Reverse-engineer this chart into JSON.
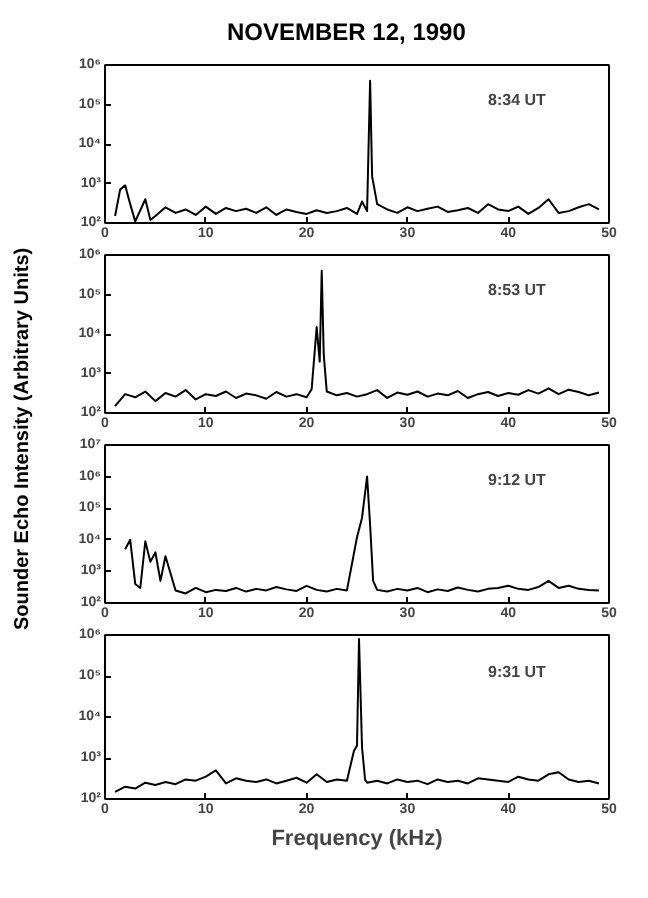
{
  "chart_data": [
    {
      "type": "line",
      "title": "NOVEMBER 12, 1990",
      "ylabel": "Sounder Echo Intensity (Arbitrary Units)",
      "xlim": [
        0,
        50
      ],
      "xticks": [
        0,
        10,
        20,
        30,
        40,
        50
      ],
      "ylim": [
        100,
        1000000
      ],
      "yticks": [
        {
          "value": 100,
          "label": "10²"
        },
        {
          "value": 1000,
          "label": "10³"
        },
        {
          "value": 10000,
          "label": "10⁴"
        },
        {
          "value": 100000,
          "label": "10⁵"
        },
        {
          "value": 1000000,
          "label": "10⁶"
        }
      ],
      "log": "y",
      "annotations": [
        "8:34 UT"
      ],
      "marker": "none",
      "line_style": "solid",
      "series": [
        {
          "color": "#000000",
          "x": [
            1,
            1.5,
            2,
            2.5,
            3,
            4,
            4.5,
            5,
            6,
            7,
            8,
            9,
            10,
            11,
            12,
            13,
            14,
            15,
            16,
            17,
            18,
            19,
            20,
            21,
            22,
            23,
            24,
            25,
            25.5,
            26,
            26.3,
            26.5,
            26.7,
            27,
            28,
            29,
            30,
            31,
            32,
            33,
            34,
            35,
            36,
            37,
            38,
            39,
            40,
            41,
            42,
            43,
            44,
            45,
            46,
            47,
            48,
            49
          ],
          "values": [
            150,
            700,
            900,
            300,
            110,
            400,
            120,
            150,
            250,
            180,
            220,
            160,
            260,
            170,
            240,
            200,
            230,
            180,
            250,
            160,
            220,
            190,
            170,
            210,
            180,
            200,
            240,
            170,
            350,
            200,
            400000,
            1500,
            800,
            300,
            220,
            180,
            250,
            200,
            230,
            260,
            190,
            210,
            240,
            180,
            300,
            220,
            200,
            260,
            170,
            240,
            400,
            180,
            200,
            250,
            300,
            220
          ]
        }
      ]
    },
    {
      "type": "line",
      "xlim": [
        0,
        50
      ],
      "xticks": [
        0,
        10,
        20,
        30,
        40,
        50
      ],
      "ylim": [
        100,
        1000000
      ],
      "yticks": [
        {
          "value": 100,
          "label": "10²"
        },
        {
          "value": 1000,
          "label": "10³"
        },
        {
          "value": 10000,
          "label": "10⁴"
        },
        {
          "value": 100000,
          "label": "10⁵"
        },
        {
          "value": 1000000,
          "label": "10⁶"
        }
      ],
      "log": "y",
      "annotations": [
        "8:53 UT"
      ],
      "marker": "none",
      "line_style": "solid",
      "series": [
        {
          "color": "#000000",
          "x": [
            1,
            2,
            3,
            4,
            5,
            6,
            7,
            8,
            9,
            10,
            11,
            12,
            13,
            14,
            15,
            16,
            17,
            18,
            19,
            20,
            20.5,
            21,
            21.3,
            21.5,
            21.7,
            22,
            23,
            24,
            25,
            26,
            27,
            28,
            29,
            30,
            31,
            32,
            33,
            34,
            35,
            36,
            37,
            38,
            39,
            40,
            41,
            42,
            43,
            44,
            45,
            46,
            47,
            48,
            49
          ],
          "values": [
            150,
            300,
            250,
            350,
            200,
            320,
            260,
            380,
            220,
            300,
            270,
            350,
            240,
            310,
            280,
            230,
            340,
            260,
            300,
            250,
            400,
            15000,
            2000,
            400000,
            3000,
            350,
            280,
            320,
            260,
            300,
            380,
            240,
            330,
            290,
            350,
            260,
            310,
            280,
            360,
            240,
            300,
            340,
            270,
            320,
            290,
            380,
            310,
            420,
            300,
            390,
            340,
            280,
            330
          ]
        }
      ]
    },
    {
      "type": "line",
      "xlim": [
        0,
        50
      ],
      "xticks": [
        0,
        10,
        20,
        30,
        40,
        50
      ],
      "ylim": [
        100,
        10000000
      ],
      "yticks": [
        {
          "value": 100,
          "label": "10²"
        },
        {
          "value": 1000,
          "label": "10³"
        },
        {
          "value": 10000,
          "label": "10⁴"
        },
        {
          "value": 100000,
          "label": "10⁵"
        },
        {
          "value": 1000000,
          "label": "10⁶"
        },
        {
          "value": 10000000,
          "label": "10⁷"
        }
      ],
      "log": "y",
      "annotations": [
        "9:12 UT"
      ],
      "marker": "none",
      "line_style": "solid",
      "series": [
        {
          "color": "#000000",
          "x": [
            2,
            2.5,
            3,
            3.5,
            4,
            4.5,
            5,
            5.5,
            6,
            7,
            8,
            9,
            10,
            11,
            12,
            13,
            14,
            15,
            16,
            17,
            18,
            19,
            20,
            21,
            22,
            23,
            24,
            25,
            25.5,
            26,
            26.3,
            26.6,
            27,
            28,
            29,
            30,
            31,
            32,
            33,
            34,
            35,
            36,
            37,
            38,
            39,
            40,
            41,
            42,
            43,
            44,
            45,
            46,
            47,
            48,
            49
          ],
          "values": [
            5000,
            10000,
            400,
            300,
            9000,
            2000,
            4000,
            500,
            3000,
            250,
            200,
            300,
            220,
            260,
            240,
            300,
            230,
            280,
            250,
            320,
            270,
            240,
            350,
            260,
            230,
            280,
            250,
            12000,
            50000,
            1000000,
            30000,
            500,
            260,
            230,
            280,
            250,
            300,
            220,
            270,
            240,
            310,
            260,
            230,
            280,
            300,
            350,
            280,
            260,
            320,
            500,
            300,
            350,
            280,
            260,
            250
          ]
        }
      ]
    },
    {
      "type": "line",
      "xlabel": "Frequency (kHz)",
      "xlim": [
        0,
        50
      ],
      "xticks": [
        0,
        10,
        20,
        30,
        40,
        50
      ],
      "ylim": [
        100,
        1000000
      ],
      "yticks": [
        {
          "value": 100,
          "label": "10²"
        },
        {
          "value": 1000,
          "label": "10³"
        },
        {
          "value": 10000,
          "label": "10⁴"
        },
        {
          "value": 100000,
          "label": "10⁵"
        },
        {
          "value": 1000000,
          "label": "10⁶"
        }
      ],
      "log": "y",
      "annotations": [
        "9:31 UT"
      ],
      "marker": "none",
      "line_style": "solid",
      "series": [
        {
          "color": "#000000",
          "x": [
            1,
            2,
            3,
            4,
            5,
            6,
            7,
            8,
            9,
            10,
            11,
            12,
            13,
            14,
            15,
            16,
            17,
            18,
            19,
            20,
            21,
            22,
            23,
            24,
            24.7,
            25,
            25.2,
            25.5,
            25.8,
            26,
            27,
            28,
            29,
            30,
            31,
            32,
            33,
            34,
            35,
            36,
            37,
            38,
            39,
            40,
            41,
            42,
            43,
            44,
            45,
            46,
            47,
            48,
            49
          ],
          "values": [
            150,
            200,
            180,
            250,
            220,
            260,
            230,
            300,
            280,
            350,
            500,
            240,
            320,
            280,
            260,
            300,
            240,
            280,
            330,
            250,
            400,
            260,
            300,
            280,
            1500,
            2000,
            800000,
            1800,
            300,
            250,
            280,
            240,
            300,
            260,
            280,
            230,
            300,
            260,
            280,
            240,
            320,
            300,
            280,
            260,
            350,
            300,
            280,
            400,
            450,
            300,
            260,
            280,
            240
          ]
        }
      ]
    }
  ]
}
